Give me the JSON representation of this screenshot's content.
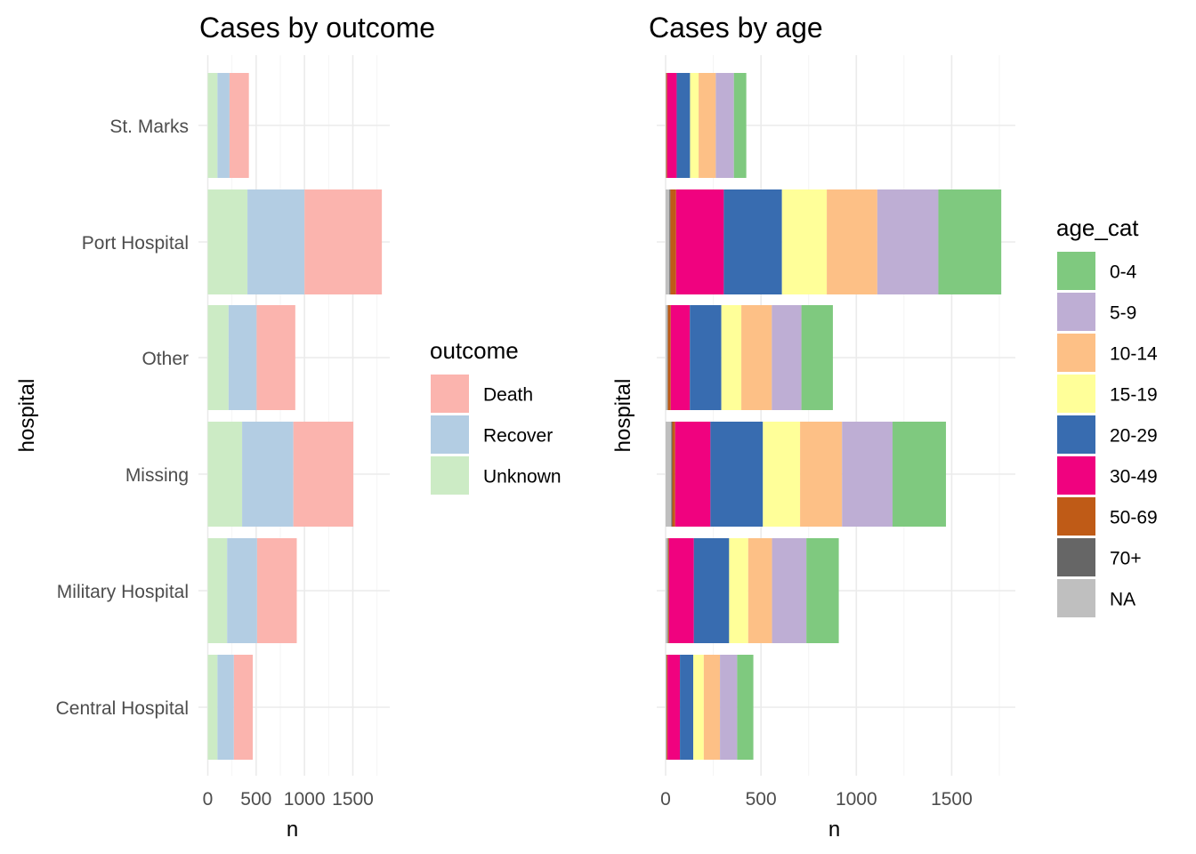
{
  "chart_data": [
    {
      "type": "bar",
      "orientation": "horizontal",
      "stacked": true,
      "title": "Cases by outcome",
      "xlabel": "n",
      "ylabel": "hospital",
      "xlim": [
        0,
        1800
      ],
      "x_ticks": [
        0,
        500,
        1000,
        1500
      ],
      "grid": true,
      "categories": [
        "St. Marks",
        "Port Hospital",
        "Other",
        "Missing",
        "Military Hospital",
        "Central Hospital"
      ],
      "legend": {
        "title": "outcome",
        "placement": "right"
      },
      "series": [
        {
          "name": "Death",
          "color": "#FBB4AE",
          "values": [
            200,
            800,
            400,
            620,
            410,
            195
          ]
        },
        {
          "name": "Recover",
          "color": "#B3CDE3",
          "values": [
            125,
            590,
            290,
            530,
            310,
            170
          ]
        },
        {
          "name": "Unknown",
          "color": "#CCEBC5",
          "values": [
            100,
            410,
            215,
            355,
            200,
            100
          ]
        }
      ]
    },
    {
      "type": "bar",
      "orientation": "horizontal",
      "stacked": true,
      "title": "Cases by age",
      "xlabel": "n",
      "ylabel": "hospital",
      "xlim": [
        0,
        1850
      ],
      "x_ticks": [
        0,
        500,
        1000,
        1500
      ],
      "grid": true,
      "categories": [
        "St. Marks",
        "Port Hospital",
        "Other",
        "Missing",
        "Military Hospital",
        "Central Hospital"
      ],
      "legend": {
        "title": "age_cat",
        "placement": "right"
      },
      "series": [
        {
          "name": "0-4",
          "color": "#7FC97F",
          "values": [
            65,
            330,
            165,
            280,
            170,
            85
          ]
        },
        {
          "name": "5-9",
          "color": "#BEAED4",
          "values": [
            95,
            320,
            155,
            265,
            180,
            90
          ]
        },
        {
          "name": "10-14",
          "color": "#FDC086",
          "values": [
            90,
            265,
            160,
            220,
            125,
            85
          ]
        },
        {
          "name": "15-19",
          "color": "#FFFF99",
          "values": [
            45,
            235,
            105,
            195,
            100,
            55
          ]
        },
        {
          "name": "20-29",
          "color": "#386CB0",
          "values": [
            70,
            305,
            165,
            275,
            185,
            70
          ]
        },
        {
          "name": "30-49",
          "color": "#F0027F",
          "values": [
            50,
            250,
            100,
            185,
            130,
            65
          ]
        },
        {
          "name": "50-69",
          "color": "#BF5B17",
          "values": [
            5,
            30,
            15,
            15,
            5,
            5
          ]
        },
        {
          "name": "70+",
          "color": "#666666",
          "values": [
            1,
            5,
            2,
            5,
            3,
            1
          ]
        },
        {
          "name": "NA",
          "color": "#BFBFBF",
          "values": [
            2,
            20,
            10,
            30,
            10,
            4
          ]
        }
      ]
    }
  ]
}
